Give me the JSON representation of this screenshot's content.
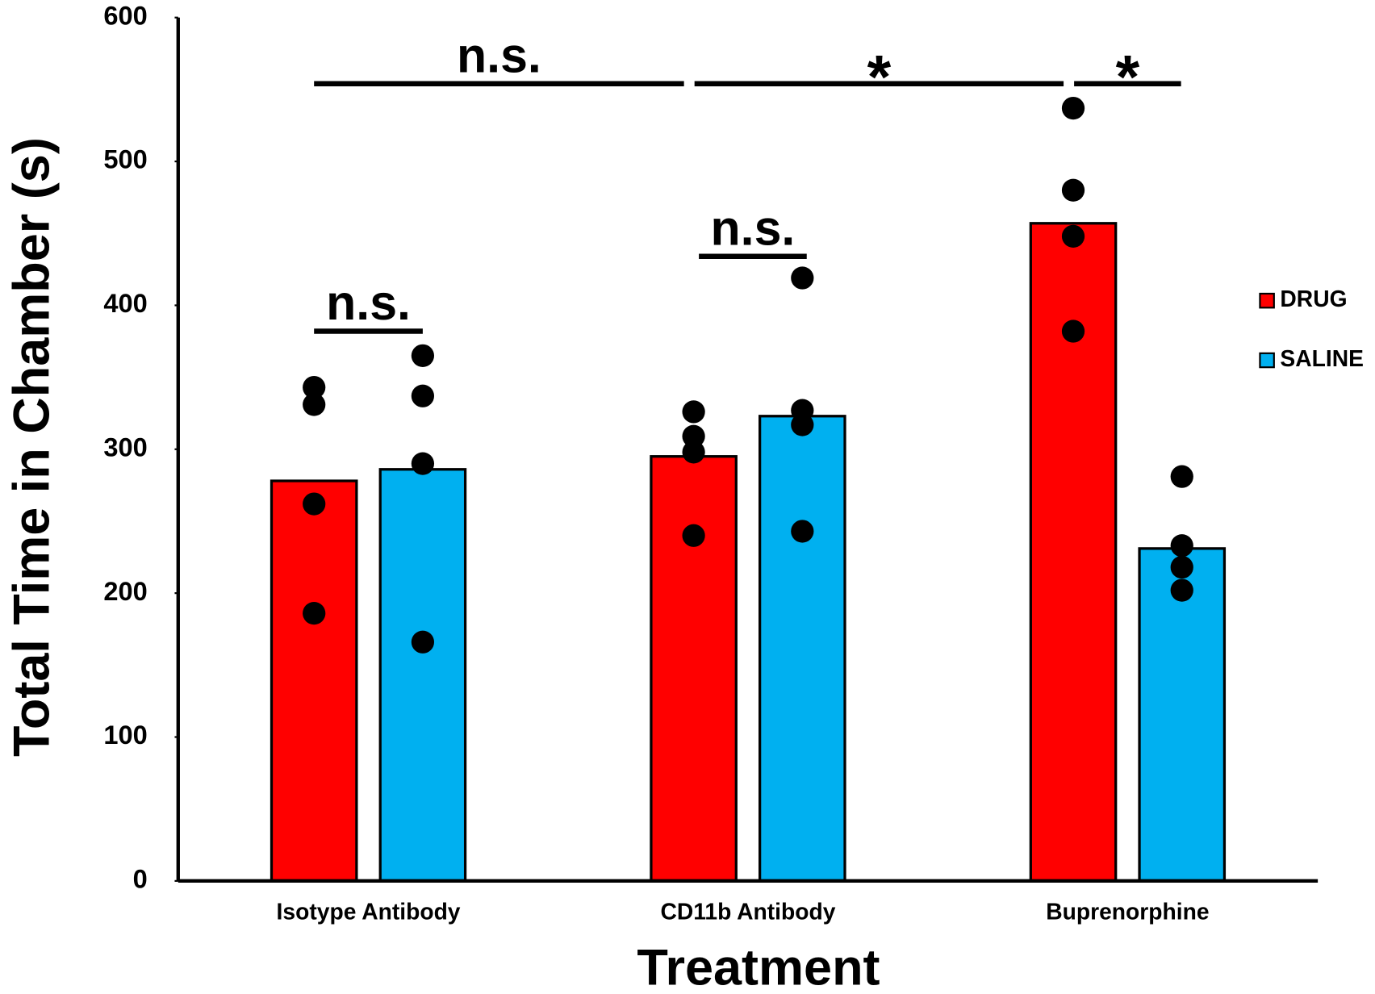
{
  "chart_data": {
    "type": "bar",
    "x_label": "Treatment",
    "y_label": "Total Time in Chamber (s)",
    "categories": [
      "Isotype Antibody",
      "CD11b Antibody",
      "Buprenorphine"
    ],
    "series": [
      {
        "name": "DRUG",
        "color": "#ff0000",
        "values": [
          278,
          295,
          457
        ],
        "points": [
          [
            343,
            331,
            262,
            186
          ],
          [
            326,
            309,
            298,
            240
          ],
          [
            537,
            480,
            448,
            382
          ]
        ]
      },
      {
        "name": "SALINE",
        "color": "#00b0f0",
        "values": [
          286,
          323,
          231
        ],
        "points": [
          [
            365,
            337,
            290,
            166
          ],
          [
            327,
            317,
            243,
            419
          ],
          [
            281,
            233,
            218,
            202
          ]
        ]
      }
    ],
    "ylim": [
      0,
      600
    ],
    "yticks": [
      0,
      100,
      200,
      300,
      400,
      500,
      600
    ],
    "annotations": [
      {
        "text": "n.s.",
        "y": 382
      },
      {
        "text": "n.s.",
        "y": 434
      },
      {
        "text": "n.s.",
        "y": 554
      },
      {
        "text": "*",
        "y": 554
      },
      {
        "text": "*",
        "y": 554
      }
    ],
    "legend": "right"
  }
}
